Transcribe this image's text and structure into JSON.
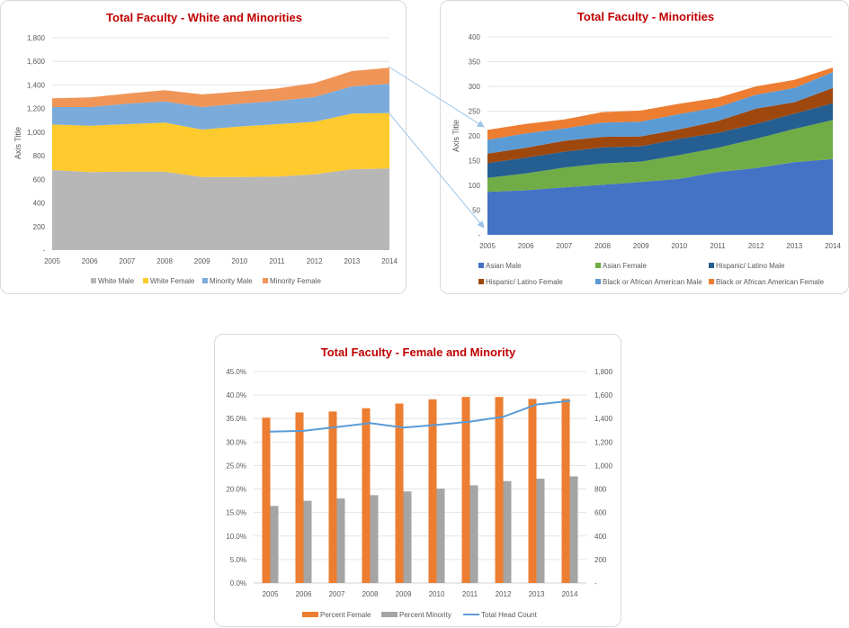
{
  "chart_data": [
    {
      "id": "white-minorities",
      "type": "area",
      "stacked": true,
      "title": "Total Faculty - White and Minorities",
      "xlabel": "",
      "ylabel": "Axis Title",
      "x": [
        "2005",
        "2006",
        "2007",
        "2008",
        "2009",
        "2010",
        "2011",
        "2012",
        "2013",
        "2014"
      ],
      "ylim": [
        0,
        1800
      ],
      "yticks": [
        0,
        200,
        400,
        600,
        800,
        1000,
        1200,
        1400,
        1600,
        1800
      ],
      "ytick_labels": [
        "-",
        "200",
        "400",
        "600",
        "800",
        "1,000",
        "1,200",
        "1,400",
        "1,600",
        "1,800"
      ],
      "grid": true,
      "legend_position": "bottom",
      "series": [
        {
          "name": "White Male",
          "color": "#B7B7B7",
          "values": [
            679,
            661,
            666,
            666,
            620,
            620,
            623,
            643,
            686,
            692
          ]
        },
        {
          "name": "White Female",
          "color": "#FFCA2E",
          "values": [
            386,
            394,
            402,
            415,
            402,
            428,
            445,
            445,
            471,
            470
          ]
        },
        {
          "name": "Minority Male",
          "color": "#7BABDB",
          "values": [
            148,
            158,
            173,
            180,
            191,
            193,
            196,
            211,
            231,
            247
          ]
        },
        {
          "name": "Minority Female",
          "color": "#F09558",
          "values": [
            74,
            81,
            86,
            94,
            107,
            104,
            106,
            117,
            130,
            137
          ]
        }
      ]
    },
    {
      "id": "minorities",
      "type": "area",
      "stacked": true,
      "title": "Total Faculty - Minorities",
      "xlabel": "",
      "ylabel": "Axis Title",
      "x": [
        "2005",
        "2006",
        "2007",
        "2008",
        "2009",
        "2010",
        "2011",
        "2012",
        "2013",
        "2014"
      ],
      "ylim": [
        0,
        400
      ],
      "yticks": [
        0,
        50,
        100,
        150,
        200,
        250,
        300,
        350,
        400
      ],
      "ytick_labels": [
        "-",
        "50",
        "100",
        "150",
        "200",
        "250",
        "300",
        "350",
        "400"
      ],
      "grid": true,
      "legend_position": "bottom",
      "series": [
        {
          "name": "Asian Male",
          "color": "#4472C4",
          "values": [
            87,
            90,
            96,
            101,
            107,
            113,
            127,
            135,
            147,
            153
          ]
        },
        {
          "name": "Asian Female",
          "color": "#70AD47",
          "values": [
            28,
            34,
            40,
            43,
            41,
            48,
            49,
            59,
            67,
            79
          ]
        },
        {
          "name": "Hispanic/   Latino Male",
          "color": "#255E91",
          "values": [
            30,
            32,
            32,
            33,
            31,
            33,
            30,
            30,
            31,
            34
          ]
        },
        {
          "name": "Hispanic/   Latino Female",
          "color": "#9E480E",
          "values": [
            19,
            20,
            22,
            21,
            20,
            19,
            24,
            31,
            23,
            31
          ]
        },
        {
          "name": "Black or African American Male",
          "color": "#5B9BD5",
          "values": [
            28,
            29,
            25,
            29,
            30,
            31,
            28,
            28,
            29,
            32
          ]
        },
        {
          "name": "Black or African American Female",
          "color": "#ED7D31",
          "values": [
            20,
            19,
            18,
            21,
            22,
            21,
            19,
            17,
            16,
            9
          ]
        }
      ]
    },
    {
      "id": "female-minority",
      "type": "bar",
      "title": "Total Faculty - Female and Minority",
      "categories": [
        "2005",
        "2006",
        "2007",
        "2008",
        "2009",
        "2010",
        "2011",
        "2012",
        "2013",
        "2014"
      ],
      "ylim": [
        0,
        45
      ],
      "yticks": [
        0,
        5,
        10,
        15,
        20,
        25,
        30,
        35,
        40,
        45
      ],
      "ytick_labels": [
        "0.0%",
        "5.0%",
        "10.0%",
        "15.0%",
        "20.0%",
        "25.0%",
        "30.0%",
        "35.0%",
        "40.0%",
        "45.0%"
      ],
      "y2lim": [
        0,
        1800
      ],
      "y2ticks": [
        0,
        200,
        400,
        600,
        800,
        1000,
        1200,
        1400,
        1600,
        1800
      ],
      "y2tick_labels": [
        "-",
        "200",
        "400",
        "600",
        "800",
        "1,000",
        "1,200",
        "1,400",
        "1,600",
        "1,800"
      ],
      "grid": true,
      "legend_position": "bottom",
      "series": [
        {
          "name": "Percent Female",
          "kind": "bar",
          "axis": "left",
          "color": "#ED7D31",
          "values": [
            35.2,
            36.3,
            36.5,
            37.2,
            38.2,
            39.1,
            39.6,
            39.6,
            39.2,
            39.2
          ]
        },
        {
          "name": "Percent Minority",
          "kind": "bar",
          "axis": "left",
          "color": "#A5A5A5",
          "values": [
            16.4,
            17.5,
            18.0,
            18.7,
            19.5,
            20.1,
            20.8,
            21.7,
            22.2,
            22.7
          ]
        },
        {
          "name": "Total Head Count",
          "kind": "line",
          "axis": "right",
          "color": "#5B9BD5",
          "values": [
            1288,
            1295,
            1328,
            1361,
            1323,
            1346,
            1374,
            1415,
            1520,
            1550
          ]
        }
      ]
    }
  ],
  "connector": {
    "color": "#9DC3E6",
    "from_chart": "Total Faculty - White and Minorities",
    "to_chart": "Total Faculty - Minorities",
    "meaning": "Minority Male + Minority Female expands into minorities breakdown"
  }
}
